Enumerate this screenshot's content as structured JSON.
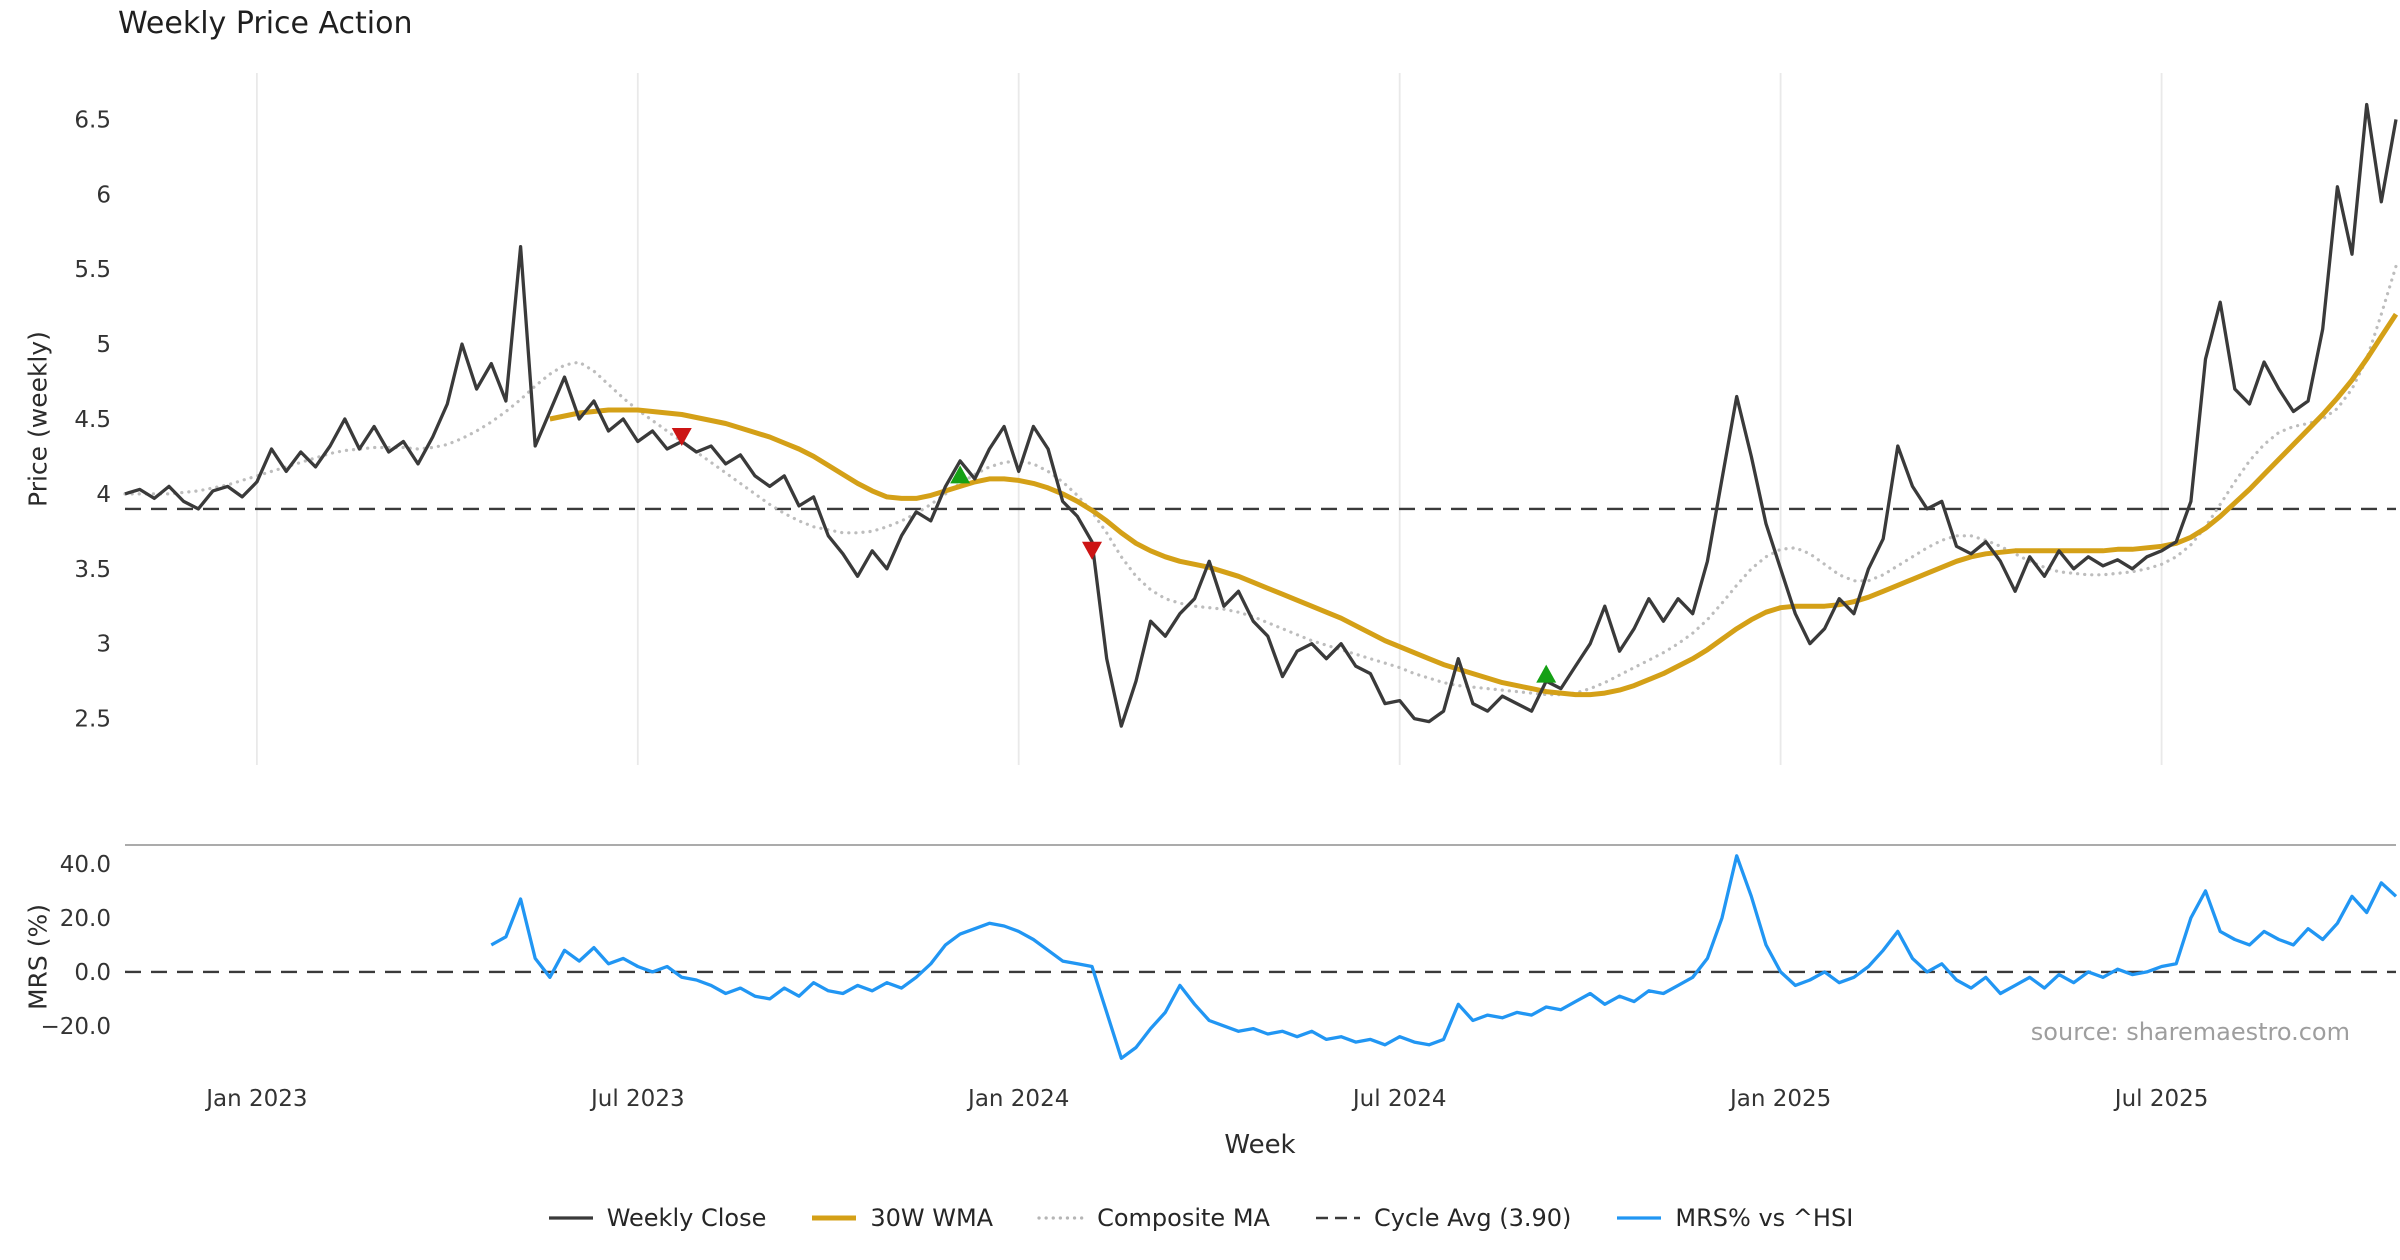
{
  "title": "Weekly Price Action",
  "source_text": "source: sharemaestro.com",
  "legend": [
    {
      "label": "Weekly Close",
      "color": "#3a3a3a",
      "style": "solid"
    },
    {
      "label": "30W WMA",
      "color": "#d4a017",
      "style": "thick"
    },
    {
      "label": "Composite MA",
      "color": "#b5b5b5",
      "style": "dotted"
    },
    {
      "label": "Cycle Avg (3.90)",
      "color": "#3a3a3a",
      "style": "dashed"
    },
    {
      "label": "MRS% vs ^HSI",
      "color": "#2196f3",
      "style": "solid"
    }
  ],
  "chart_data": {
    "type": "line",
    "xlabel": "Week",
    "x_range": [
      0,
      155
    ],
    "x_unit": "week-index",
    "x_ticks": [
      {
        "pos": 9,
        "label": "Jan 2023"
      },
      {
        "pos": 35,
        "label": "Jul 2023"
      },
      {
        "pos": 61,
        "label": "Jan 2024"
      },
      {
        "pos": 87,
        "label": "Jul 2024"
      },
      {
        "pos": 113,
        "label": "Jan 2025"
      },
      {
        "pos": 139,
        "label": "Jul 2025"
      }
    ],
    "panels": [
      {
        "name": "price",
        "ylabel": "Price (weekly)",
        "ylim": [
          2.19,
          6.81
        ],
        "grid": "vertical",
        "yticks": [
          {
            "v": 2.5,
            "label": "2.5"
          },
          {
            "v": 3,
            "label": "3"
          },
          {
            "v": 3.5,
            "label": "3.5"
          },
          {
            "v": 4,
            "label": "4"
          },
          {
            "v": 4.5,
            "label": "4.5"
          },
          {
            "v": 5,
            "label": "5"
          },
          {
            "v": 5.5,
            "label": "5.5"
          },
          {
            "v": 6,
            "label": "6"
          },
          {
            "v": 6.5,
            "label": "6.5"
          }
        ],
        "hline": {
          "value": 3.9,
          "label": "Cycle Avg (3.90)",
          "color": "#3a3a3a",
          "style": "dashed"
        },
        "series": [
          {
            "id": "composite-ma-line",
            "name": "Composite MA",
            "color": "#bdbdbd",
            "style": "dotted",
            "start": 0,
            "values": [
              4.0,
              4.0,
              4.0,
              4.0,
              4.01,
              4.02,
              4.04,
              4.06,
              4.09,
              4.12,
              4.15,
              4.18,
              4.21,
              4.24,
              4.27,
              4.29,
              4.3,
              4.31,
              4.31,
              4.31,
              4.3,
              4.31,
              4.33,
              4.37,
              4.42,
              4.48,
              4.55,
              4.63,
              4.72,
              4.8,
              4.86,
              4.88,
              4.82,
              4.73,
              4.64,
              4.56,
              4.49,
              4.42,
              4.35,
              4.28,
              4.21,
              4.14,
              4.07,
              4.0,
              3.93,
              3.87,
              3.82,
              3.78,
              3.76,
              3.74,
              3.74,
              3.75,
              3.78,
              3.82,
              3.87,
              3.93,
              4.0,
              4.07,
              4.13,
              4.18,
              4.21,
              4.22,
              4.2,
              4.15,
              4.08,
              3.99,
              3.88,
              3.74,
              3.58,
              3.45,
              3.36,
              3.3,
              3.27,
              3.25,
              3.24,
              3.23,
              3.21,
              3.18,
              3.14,
              3.1,
              3.06,
              3.02,
              2.99,
              2.96,
              2.93,
              2.9,
              2.87,
              2.84,
              2.8,
              2.77,
              2.74,
              2.72,
              2.71,
              2.7,
              2.69,
              2.68,
              2.67,
              2.66,
              2.66,
              2.67,
              2.7,
              2.74,
              2.79,
              2.84,
              2.89,
              2.94,
              3.0,
              3.07,
              3.16,
              3.27,
              3.39,
              3.5,
              3.58,
              3.63,
              3.64,
              3.6,
              3.53,
              3.46,
              3.42,
              3.42,
              3.46,
              3.52,
              3.58,
              3.64,
              3.69,
              3.72,
              3.72,
              3.69,
              3.65,
              3.6,
              3.55,
              3.51,
              3.48,
              3.47,
              3.46,
              3.46,
              3.47,
              3.48,
              3.5,
              3.53,
              3.58,
              3.66,
              3.78,
              3.93,
              4.08,
              4.22,
              4.33,
              4.41,
              4.45,
              4.47,
              4.5,
              4.57,
              4.7,
              4.9,
              5.2,
              5.52
            ]
          },
          {
            "id": "wma-line",
            "name": "30W WMA",
            "color": "#d4a017",
            "style": "thick",
            "start": 29,
            "values": [
              4.5,
              4.52,
              4.54,
              4.55,
              4.56,
              4.56,
              4.56,
              4.55,
              4.54,
              4.53,
              4.51,
              4.49,
              4.47,
              4.44,
              4.41,
              4.38,
              4.34,
              4.3,
              4.25,
              4.19,
              4.13,
              4.07,
              4.02,
              3.98,
              3.97,
              3.97,
              3.99,
              4.02,
              4.05,
              4.08,
              4.1,
              4.1,
              4.09,
              4.07,
              4.04,
              4.0,
              3.95,
              3.89,
              3.82,
              3.74,
              3.67,
              3.62,
              3.58,
              3.55,
              3.53,
              3.51,
              3.48,
              3.45,
              3.41,
              3.37,
              3.33,
              3.29,
              3.25,
              3.21,
              3.17,
              3.12,
              3.07,
              3.02,
              2.98,
              2.94,
              2.9,
              2.86,
              2.83,
              2.8,
              2.77,
              2.74,
              2.72,
              2.7,
              2.68,
              2.67,
              2.66,
              2.66,
              2.67,
              2.69,
              2.72,
              2.76,
              2.8,
              2.85,
              2.9,
              2.96,
              3.03,
              3.1,
              3.16,
              3.21,
              3.24,
              3.25,
              3.25,
              3.25,
              3.26,
              3.28,
              3.31,
              3.35,
              3.39,
              3.43,
              3.47,
              3.51,
              3.55,
              3.58,
              3.6,
              3.61,
              3.62,
              3.62,
              3.62,
              3.62,
              3.62,
              3.62,
              3.62,
              3.63,
              3.63,
              3.64,
              3.65,
              3.67,
              3.71,
              3.77,
              3.85,
              3.94,
              4.03,
              4.13,
              4.23,
              4.33,
              4.43,
              4.53,
              4.64,
              4.76,
              4.9,
              5.05,
              5.2
            ]
          },
          {
            "id": "weekly-close-line",
            "name": "Weekly Close",
            "color": "#3a3a3a",
            "style": "solid",
            "start": 0,
            "values": [
              4.0,
              4.03,
              3.97,
              4.05,
              3.95,
              3.9,
              4.02,
              4.05,
              3.98,
              4.08,
              4.3,
              4.15,
              4.28,
              4.18,
              4.32,
              4.5,
              4.3,
              4.45,
              4.28,
              4.35,
              4.2,
              4.38,
              4.6,
              5.0,
              4.7,
              4.87,
              4.62,
              5.65,
              4.32,
              4.55,
              4.78,
              4.5,
              4.62,
              4.42,
              4.5,
              4.35,
              4.42,
              4.3,
              4.35,
              4.28,
              4.32,
              4.2,
              4.26,
              4.12,
              4.05,
              4.12,
              3.92,
              3.98,
              3.72,
              3.6,
              3.45,
              3.62,
              3.5,
              3.72,
              3.88,
              3.82,
              4.05,
              4.22,
              4.1,
              4.3,
              4.45,
              4.15,
              4.45,
              4.3,
              3.95,
              3.85,
              3.68,
              2.9,
              2.45,
              2.75,
              3.15,
              3.05,
              3.2,
              3.3,
              3.55,
              3.25,
              3.35,
              3.15,
              3.05,
              2.78,
              2.95,
              3.0,
              2.9,
              3.0,
              2.85,
              2.8,
              2.6,
              2.62,
              2.5,
              2.48,
              2.55,
              2.9,
              2.6,
              2.55,
              2.65,
              2.6,
              2.55,
              2.75,
              2.7,
              2.85,
              3.0,
              3.25,
              2.95,
              3.1,
              3.3,
              3.15,
              3.3,
              3.2,
              3.55,
              4.1,
              4.65,
              4.25,
              3.8,
              3.5,
              3.2,
              3.0,
              3.1,
              3.3,
              3.2,
              3.5,
              3.7,
              4.32,
              4.05,
              3.9,
              3.95,
              3.65,
              3.6,
              3.68,
              3.55,
              3.35,
              3.58,
              3.45,
              3.62,
              3.5,
              3.58,
              3.52,
              3.56,
              3.5,
              3.58,
              3.62,
              3.68,
              3.95,
              4.9,
              5.28,
              4.7,
              4.6,
              4.88,
              4.7,
              4.55,
              4.62,
              5.1,
              6.05,
              5.6,
              6.6,
              5.95,
              6.5
            ]
          }
        ],
        "markers": [
          {
            "shape": "triangle-down",
            "color": "#cc1414",
            "x": 38,
            "y": 4.38
          },
          {
            "shape": "triangle-up",
            "color": "#15a015",
            "x": 57,
            "y": 4.13
          },
          {
            "shape": "triangle-down",
            "color": "#cc1414",
            "x": 66,
            "y": 3.62
          },
          {
            "shape": "triangle-up",
            "color": "#15a015",
            "x": 97,
            "y": 2.8
          }
        ]
      },
      {
        "name": "mrs",
        "ylabel": "MRS (%)",
        "ylim": [
          -36.7,
          47.0
        ],
        "grid": "none",
        "yticks": [
          {
            "v": -20,
            "label": "−20.0"
          },
          {
            "v": 0,
            "label": "0.0"
          },
          {
            "v": 20,
            "label": "20.0"
          },
          {
            "v": 40,
            "label": "40.0"
          }
        ],
        "hline": {
          "value": 0,
          "color": "#3a3a3a",
          "style": "dashed"
        },
        "series": [
          {
            "id": "mrs-line",
            "name": "MRS% vs ^HSI",
            "color": "#2196f3",
            "style": "solid",
            "start": 25,
            "values": [
              10,
              13,
              27,
              5,
              -2,
              8,
              4,
              9,
              3,
              5,
              2,
              0,
              2,
              -2,
              -3,
              -5,
              -8,
              -6,
              -9,
              -10,
              -6,
              -9,
              -4,
              -7,
              -8,
              -5,
              -7,
              -4,
              -6,
              -2,
              3,
              10,
              14,
              16,
              18,
              17,
              15,
              12,
              8,
              4,
              3,
              2,
              -15,
              -32,
              -28,
              -21,
              -15,
              -5,
              -12,
              -18,
              -20,
              -22,
              -21,
              -23,
              -22,
              -24,
              -22,
              -25,
              -24,
              -26,
              -25,
              -27,
              -24,
              -26,
              -27,
              -25,
              -12,
              -18,
              -16,
              -17,
              -15,
              -16,
              -13,
              -14,
              -11,
              -8,
              -12,
              -9,
              -11,
              -7,
              -8,
              -5,
              -2,
              5,
              20,
              43,
              28,
              10,
              0,
              -5,
              -3,
              0,
              -4,
              -2,
              2,
              8,
              15,
              5,
              0,
              3,
              -3,
              -6,
              -2,
              -8,
              -5,
              -2,
              -6,
              -1,
              -4,
              0,
              -2,
              1,
              -1,
              0,
              2,
              3,
              20,
              30,
              15,
              12,
              10,
              15,
              12,
              10,
              16,
              12,
              18,
              28,
              22,
              33,
              28
            ]
          }
        ],
        "markers": []
      }
    ]
  }
}
